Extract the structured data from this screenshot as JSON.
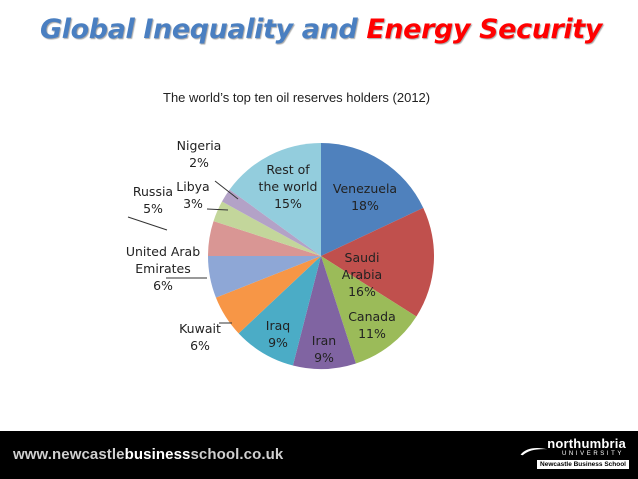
{
  "slide": {
    "title_part1": "Global Inequality and ",
    "title_part2": "Energy Security",
    "title_color1": "#4a7fc1",
    "title_color2": "#ff0000"
  },
  "chart_data": {
    "type": "pie",
    "title": "The world’s top ten oil reserves holders (2012)",
    "slices": [
      {
        "name": "Venezuela",
        "value": 18,
        "label": "18%",
        "color": "#4f81bd"
      },
      {
        "name": "Saudi Arabia",
        "value": 16,
        "label": "16%",
        "color": "#c0504d"
      },
      {
        "name": "Canada",
        "value": 11,
        "label": "11%",
        "color": "#9bbb59"
      },
      {
        "name": "Iran",
        "value": 9,
        "label": "9%",
        "color": "#8064a2"
      },
      {
        "name": "Iraq",
        "value": 9,
        "label": "9%",
        "color": "#4bacc6"
      },
      {
        "name": "Kuwait",
        "value": 6,
        "label": "6%",
        "color": "#f79646"
      },
      {
        "name": "United Arab Emirates",
        "value": 6,
        "label": "6%",
        "color": "#8ea7d6"
      },
      {
        "name": "Russia",
        "value": 5,
        "label": "5%",
        "color": "#d99694"
      },
      {
        "name": "Libya",
        "value": 3,
        "label": "3%",
        "color": "#c3d69b"
      },
      {
        "name": "Nigeria",
        "value": 2,
        "label": "2%",
        "color": "#b3a2c7"
      },
      {
        "name": "Rest of the world",
        "value": 15,
        "label": "15%",
        "color": "#93cddd"
      }
    ]
  },
  "footer": {
    "url_part1": "www.newcastle",
    "url_part2": "business",
    "url_part3": "school.co.uk",
    "url_color": "#cfcfcf",
    "uni_name": "northumbria",
    "uni_sub": "UNIVERSITY",
    "school_name": "Newcastle Business School"
  }
}
